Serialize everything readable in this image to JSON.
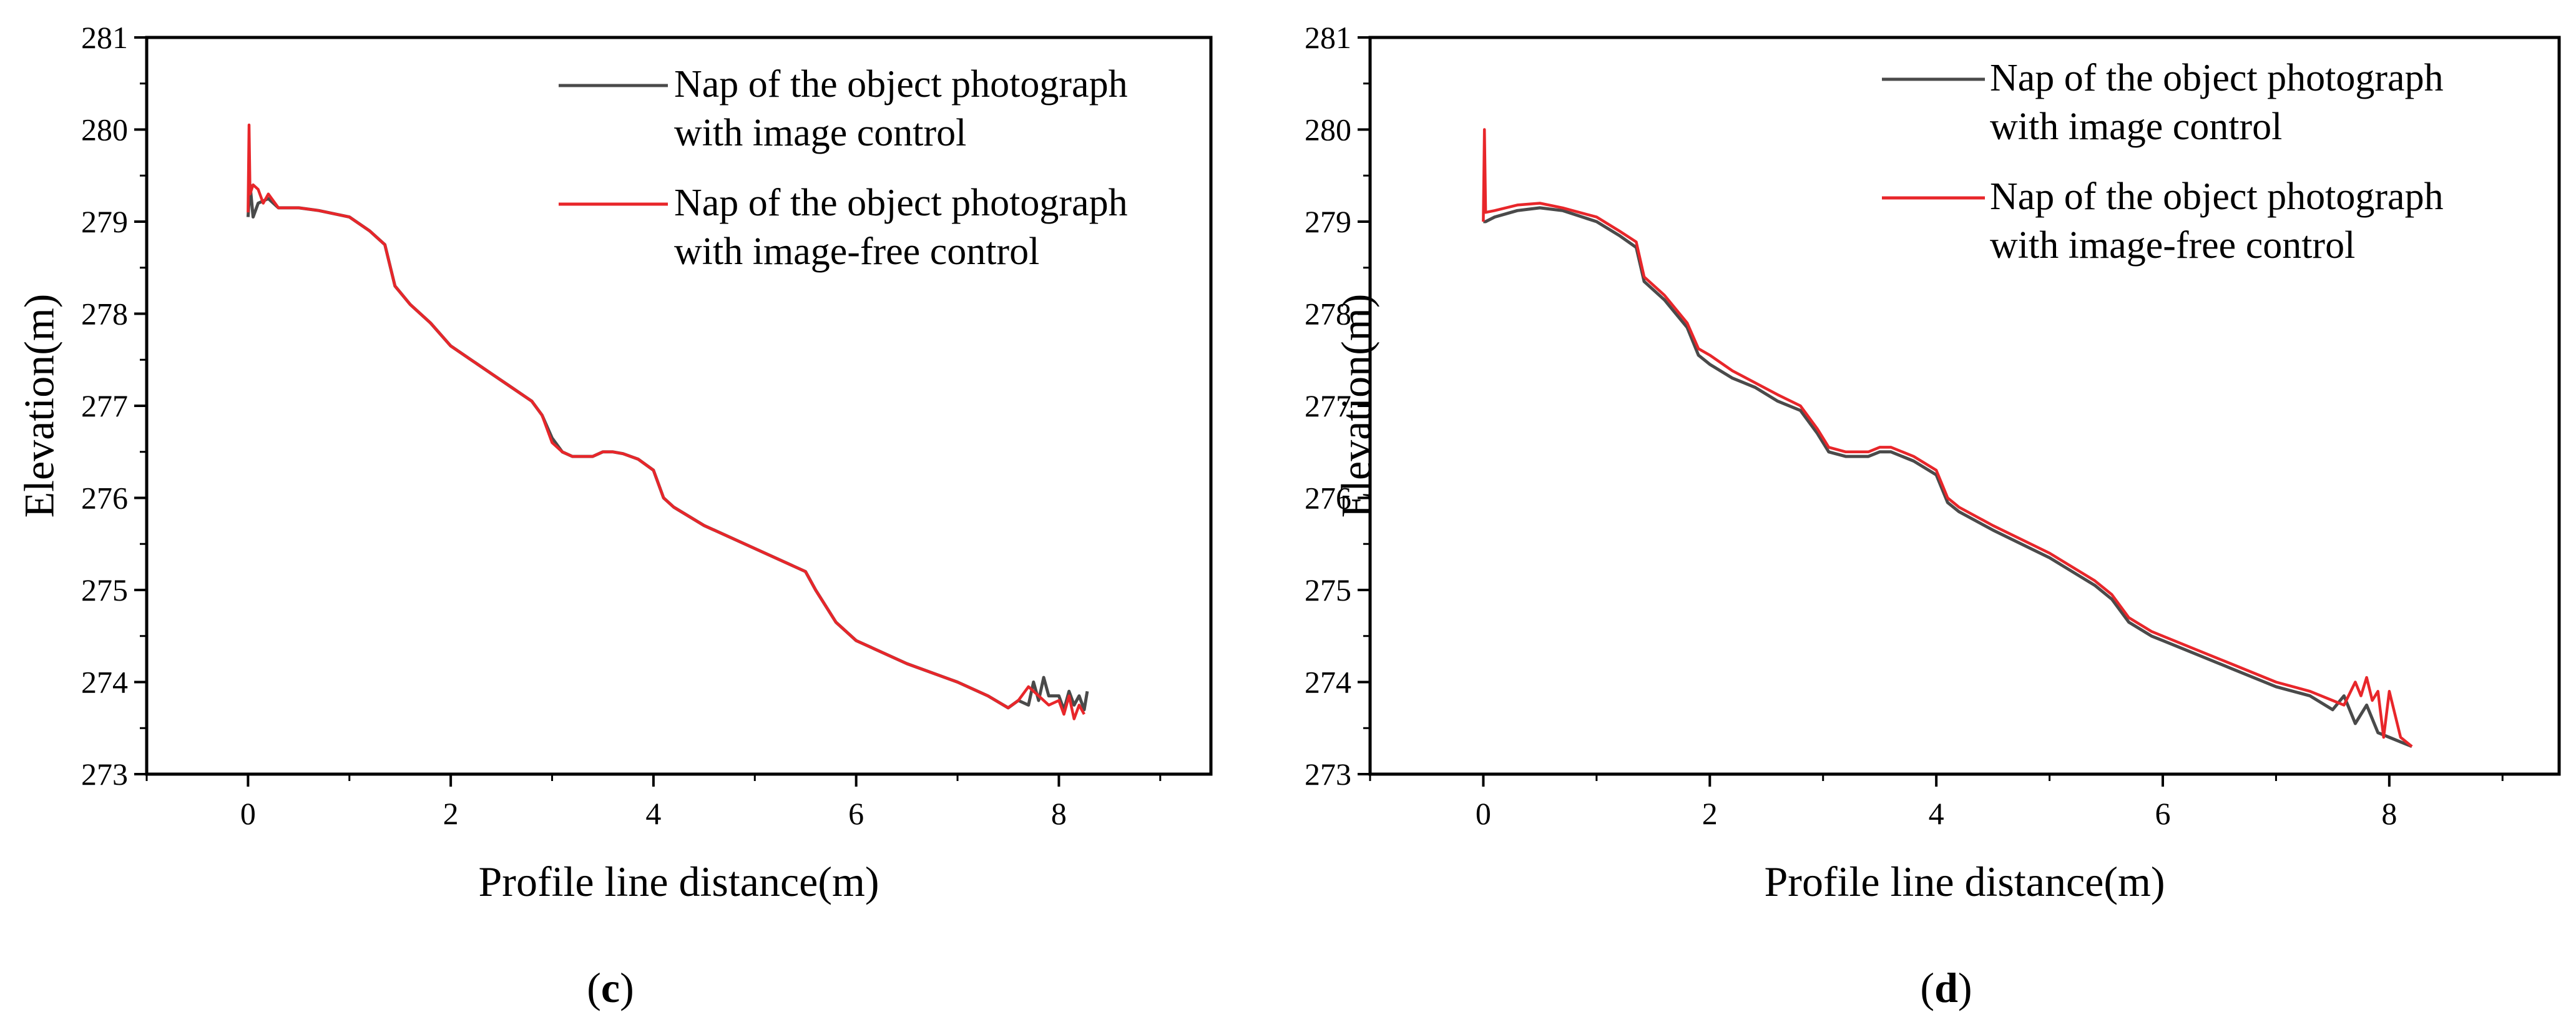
{
  "chart_data": [
    {
      "type": "line",
      "panel_label": "c",
      "xlabel": "Profile line distance(m)",
      "ylabel": "Elevation(m)",
      "xlim": [
        -1,
        9.5
      ],
      "ylim": [
        273,
        281
      ],
      "xticks": [
        0,
        2,
        4,
        6,
        8
      ],
      "yticks": [
        273,
        274,
        275,
        276,
        277,
        278,
        279,
        280,
        281
      ],
      "legend": "top-right",
      "grid": false,
      "series": [
        {
          "name": "Nap of the object photograph with image control",
          "color": "#4a4a4a",
          "x": [
            0,
            0.02,
            0.05,
            0.1,
            0.2,
            0.3,
            0.5,
            0.7,
            1.0,
            1.2,
            1.35,
            1.45,
            1.6,
            1.8,
            2.0,
            2.2,
            2.4,
            2.6,
            2.8,
            2.9,
            3.0,
            3.1,
            3.2,
            3.4,
            3.5,
            3.6,
            3.7,
            3.85,
            4.0,
            4.1,
            4.2,
            4.5,
            5.0,
            5.5,
            5.6,
            5.8,
            6.0,
            6.5,
            7.0,
            7.3,
            7.5,
            7.6,
            7.7,
            7.75,
            7.8,
            7.85,
            7.9,
            8.0,
            8.05,
            8.1,
            8.15,
            8.2,
            8.25,
            8.28
          ],
          "values": [
            279.05,
            279.4,
            279.05,
            279.2,
            279.25,
            279.15,
            279.15,
            279.12,
            279.05,
            278.9,
            278.75,
            278.3,
            278.1,
            277.9,
            277.65,
            277.5,
            277.35,
            277.2,
            277.05,
            276.9,
            276.65,
            276.5,
            276.45,
            276.45,
            276.5,
            276.5,
            276.48,
            276.42,
            276.3,
            276.0,
            275.9,
            275.7,
            275.45,
            275.2,
            275.0,
            274.65,
            274.45,
            274.2,
            274.0,
            273.85,
            273.72,
            273.8,
            273.75,
            274.0,
            273.8,
            274.05,
            273.85,
            273.85,
            273.7,
            273.9,
            273.75,
            273.85,
            273.7,
            273.9
          ]
        },
        {
          "name": "Nap of the object photograph with image-free control",
          "color": "#e8262a",
          "x": [
            0,
            0.01,
            0.02,
            0.05,
            0.1,
            0.15,
            0.2,
            0.3,
            0.5,
            0.7,
            1.0,
            1.2,
            1.35,
            1.45,
            1.6,
            1.8,
            2.0,
            2.2,
            2.4,
            2.6,
            2.8,
            2.9,
            3.0,
            3.1,
            3.2,
            3.4,
            3.5,
            3.6,
            3.7,
            3.85,
            4.0,
            4.1,
            4.2,
            4.5,
            5.0,
            5.5,
            5.6,
            5.8,
            6.0,
            6.5,
            7.0,
            7.3,
            7.5,
            7.6,
            7.7,
            7.8,
            7.9,
            8.0,
            8.05,
            8.1,
            8.15,
            8.2,
            8.25
          ],
          "values": [
            279.1,
            280.05,
            279.3,
            279.4,
            279.35,
            279.2,
            279.3,
            279.15,
            279.15,
            279.12,
            279.05,
            278.9,
            278.75,
            278.3,
            278.1,
            277.9,
            277.65,
            277.5,
            277.35,
            277.2,
            277.05,
            276.9,
            276.6,
            276.5,
            276.45,
            276.45,
            276.5,
            276.5,
            276.48,
            276.42,
            276.3,
            276.0,
            275.9,
            275.7,
            275.45,
            275.2,
            275.0,
            274.65,
            274.45,
            274.2,
            274.0,
            273.85,
            273.72,
            273.8,
            273.95,
            273.85,
            273.75,
            273.8,
            273.65,
            273.85,
            273.6,
            273.75,
            273.65
          ]
        }
      ]
    },
    {
      "type": "line",
      "panel_label": "d",
      "xlabel": "Profile line distance(m)",
      "ylabel": "Elevation(m)",
      "xlim": [
        -1,
        9.5
      ],
      "ylim": [
        273,
        281
      ],
      "xticks": [
        0,
        2,
        4,
        6,
        8
      ],
      "yticks": [
        273,
        274,
        275,
        276,
        277,
        278,
        279,
        280,
        281
      ],
      "legend": "top-right",
      "grid": false,
      "series": [
        {
          "name": "Nap of the object photograph with image control",
          "color": "#4a4a4a",
          "x": [
            0,
            0.02,
            0.1,
            0.3,
            0.5,
            0.7,
            1.0,
            1.2,
            1.35,
            1.42,
            1.6,
            1.8,
            1.9,
            2.0,
            2.2,
            2.4,
            2.6,
            2.8,
            2.95,
            3.05,
            3.2,
            3.4,
            3.5,
            3.6,
            3.8,
            4.0,
            4.1,
            4.2,
            4.5,
            5.0,
            5.4,
            5.55,
            5.7,
            5.9,
            6.0,
            6.3,
            6.6,
            7.0,
            7.3,
            7.5,
            7.6,
            7.7,
            7.8,
            7.9,
            8.0,
            8.1,
            8.2
          ],
          "values": [
            279.0,
            279.0,
            279.05,
            279.12,
            279.15,
            279.12,
            279.0,
            278.85,
            278.72,
            278.35,
            278.15,
            277.85,
            277.55,
            277.45,
            277.3,
            277.2,
            277.05,
            276.95,
            276.7,
            276.5,
            276.45,
            276.45,
            276.5,
            276.5,
            276.4,
            276.25,
            275.95,
            275.85,
            275.65,
            275.35,
            275.05,
            274.9,
            274.65,
            274.5,
            274.45,
            274.3,
            274.15,
            273.95,
            273.85,
            273.7,
            273.85,
            273.55,
            273.75,
            273.45,
            273.4,
            273.35,
            273.3
          ]
        },
        {
          "name": "Nap of the object photograph with image-free control",
          "color": "#e8262a",
          "x": [
            0,
            0.01,
            0.02,
            0.1,
            0.3,
            0.5,
            0.7,
            1.0,
            1.2,
            1.35,
            1.42,
            1.6,
            1.8,
            1.9,
            2.0,
            2.2,
            2.4,
            2.6,
            2.8,
            2.95,
            3.05,
            3.2,
            3.4,
            3.5,
            3.6,
            3.8,
            4.0,
            4.1,
            4.2,
            4.5,
            5.0,
            5.4,
            5.55,
            5.7,
            5.9,
            6.0,
            6.3,
            6.6,
            7.0,
            7.3,
            7.5,
            7.6,
            7.7,
            7.75,
            7.8,
            7.85,
            7.9,
            7.95,
            8.0,
            8.1,
            8.2
          ],
          "values": [
            279.0,
            280.0,
            279.1,
            279.12,
            279.18,
            279.2,
            279.15,
            279.05,
            278.9,
            278.78,
            278.4,
            278.2,
            277.9,
            277.62,
            277.55,
            277.38,
            277.25,
            277.12,
            277.0,
            276.75,
            276.55,
            276.5,
            276.5,
            276.55,
            276.55,
            276.45,
            276.3,
            276.0,
            275.9,
            275.7,
            275.4,
            275.1,
            274.95,
            274.7,
            274.55,
            274.5,
            274.35,
            274.2,
            274.0,
            273.9,
            273.8,
            273.75,
            274.0,
            273.85,
            274.05,
            273.8,
            273.9,
            273.4,
            273.9,
            273.4,
            273.3
          ]
        }
      ]
    }
  ]
}
